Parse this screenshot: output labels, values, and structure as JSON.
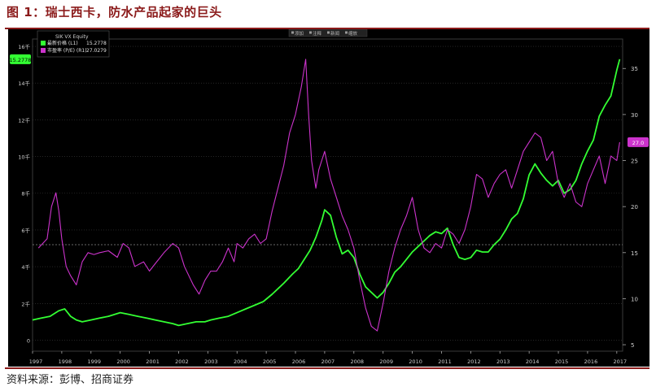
{
  "figure": {
    "title": "图 1：瑞士西卡，防水产品起家的巨头",
    "source": "资料来源：彭博、招商证券"
  },
  "toolbar": [
    "添加",
    "注释",
    "新闻",
    "缩放"
  ],
  "colors": {
    "price": "#33ff33",
    "pe": "#cc33cc",
    "background": "#000000",
    "frame": "#8b1a1a"
  },
  "chart_data": {
    "type": "line",
    "security": "SIK VX Equity",
    "x_tick_labels": [
      "1997",
      "1998",
      "1999",
      "2000",
      "2001",
      "2002",
      "2003",
      "2004",
      "2005",
      "2006",
      "2007",
      "2008",
      "2009",
      "2010",
      "2011",
      "2012",
      "2013",
      "2014",
      "2015",
      "2016",
      "2017"
    ],
    "xlim": [
      1997,
      2017.2
    ],
    "left_axis": {
      "ticks": [
        0,
        2,
        4,
        6,
        8,
        10,
        12,
        14,
        16
      ],
      "tick_labels": [
        "0",
        "2千",
        "4千",
        "6千",
        "8千",
        "10千",
        "12千",
        "14千",
        "16千"
      ],
      "ylim": [
        -0.6,
        16.4
      ]
    },
    "right_axis": {
      "ticks": [
        5,
        10,
        15,
        20,
        25,
        30,
        35
      ],
      "tick_labels": [
        "5",
        "10",
        "15",
        "20",
        "25",
        "30",
        "35"
      ],
      "ylim": [
        4.3,
        38.2
      ]
    },
    "dashed_reference": {
      "left_axis_value": 5.2
    },
    "legend": {
      "placement": "top-left",
      "items": [
        {
          "name": "最新价格 (L1)",
          "value": "15.2778"
        },
        {
          "name": "市盈率 (P/E) (R1)",
          "value": "27.0279"
        }
      ]
    },
    "series": [
      {
        "name": "最新价格 (L1)",
        "axis": "left",
        "last_value_label": "15.2778",
        "x": [
          1997.0,
          1997.3,
          1997.6,
          1997.9,
          1998.1,
          1998.3,
          1998.5,
          1998.7,
          1999.0,
          1999.3,
          1999.6,
          2000.0,
          2000.3,
          2000.6,
          2000.9,
          2001.2,
          2001.5,
          2001.8,
          2002.0,
          2002.3,
          2002.6,
          2002.9,
          2003.1,
          2003.4,
          2003.7,
          2004.0,
          2004.3,
          2004.6,
          2004.9,
          2005.2,
          2005.4,
          2005.6,
          2005.9,
          2006.1,
          2006.3,
          2006.5,
          2006.7,
          2006.9,
          2007.0,
          2007.2,
          2007.4,
          2007.6,
          2007.8,
          2008.0,
          2008.2,
          2008.4,
          2008.6,
          2008.8,
          2009.0,
          2009.2,
          2009.4,
          2009.6,
          2009.8,
          2010.0,
          2010.2,
          2010.4,
          2010.6,
          2010.8,
          2011.0,
          2011.2,
          2011.4,
          2011.6,
          2011.8,
          2012.0,
          2012.2,
          2012.4,
          2012.6,
          2012.8,
          2013.0,
          2013.2,
          2013.4,
          2013.6,
          2013.8,
          2014.0,
          2014.2,
          2014.4,
          2014.6,
          2014.8,
          2015.0,
          2015.2,
          2015.4,
          2015.6,
          2015.8,
          2016.0,
          2016.2,
          2016.4,
          2016.6,
          2016.8,
          2017.0,
          2017.1
        ],
        "values": [
          1.1,
          1.2,
          1.3,
          1.6,
          1.7,
          1.3,
          1.1,
          1.0,
          1.1,
          1.2,
          1.3,
          1.5,
          1.4,
          1.3,
          1.2,
          1.1,
          1.0,
          0.9,
          0.8,
          0.9,
          1.0,
          1.0,
          1.1,
          1.2,
          1.3,
          1.5,
          1.7,
          1.9,
          2.1,
          2.5,
          2.8,
          3.1,
          3.6,
          3.9,
          4.4,
          4.9,
          5.6,
          6.5,
          7.1,
          6.8,
          5.6,
          4.7,
          4.9,
          4.5,
          3.6,
          2.9,
          2.6,
          2.3,
          2.6,
          3.1,
          3.7,
          4.0,
          4.4,
          4.8,
          5.1,
          5.4,
          5.7,
          5.9,
          5.8,
          6.1,
          5.2,
          4.5,
          4.4,
          4.5,
          4.9,
          4.8,
          4.8,
          5.2,
          5.5,
          6.0,
          6.6,
          6.9,
          7.7,
          9.0,
          9.6,
          9.1,
          8.7,
          8.4,
          8.7,
          8.0,
          8.2,
          8.7,
          9.6,
          10.3,
          10.9,
          12.2,
          12.8,
          13.3,
          14.7,
          15.3
        ]
      },
      {
        "name": "市盈率 (P/E) (R1)",
        "axis": "right",
        "last_value_label": "27.0",
        "x": [
          1997.2,
          1997.5,
          1997.65,
          1997.8,
          1997.9,
          1998.0,
          1998.15,
          1998.3,
          1998.5,
          1998.7,
          1998.9,
          1999.1,
          1999.3,
          1999.6,
          1999.9,
          2000.1,
          2000.3,
          2000.5,
          2000.8,
          2001.0,
          2001.2,
          2001.5,
          2001.8,
          2002.0,
          2002.2,
          2002.5,
          2002.7,
          2002.9,
          2003.1,
          2003.3,
          2003.5,
          2003.7,
          2003.9,
          2004.0,
          2004.2,
          2004.4,
          2004.6,
          2004.8,
          2005.0,
          2005.2,
          2005.4,
          2005.6,
          2005.8,
          2006.0,
          2006.2,
          2006.35,
          2006.45,
          2006.55,
          2006.7,
          2006.8,
          2006.9,
          2007.0,
          2007.2,
          2007.4,
          2007.6,
          2007.8,
          2008.0,
          2008.2,
          2008.4,
          2008.6,
          2008.8,
          2009.0,
          2009.2,
          2009.4,
          2009.6,
          2009.8,
          2010.0,
          2010.2,
          2010.4,
          2010.6,
          2010.8,
          2011.0,
          2011.2,
          2011.4,
          2011.6,
          2011.8,
          2012.0,
          2012.2,
          2012.4,
          2012.6,
          2012.8,
          2013.0,
          2013.2,
          2013.4,
          2013.6,
          2013.8,
          2014.0,
          2014.2,
          2014.4,
          2014.6,
          2014.8,
          2015.0,
          2015.2,
          2015.4,
          2015.6,
          2015.8,
          2016.0,
          2016.2,
          2016.4,
          2016.6,
          2016.8,
          2017.0,
          2017.1
        ],
        "values": [
          15.5,
          16.5,
          20.0,
          21.5,
          19.5,
          16.5,
          13.5,
          12.5,
          11.5,
          14.0,
          15.0,
          14.8,
          15.0,
          15.2,
          14.5,
          16.0,
          15.5,
          13.5,
          14.0,
          13.0,
          13.8,
          15.0,
          16.0,
          15.5,
          13.5,
          11.5,
          10.5,
          12.0,
          13.0,
          13.0,
          14.0,
          15.5,
          14.0,
          16.0,
          15.5,
          16.5,
          17.0,
          16.0,
          16.5,
          19.5,
          22.0,
          24.5,
          28.0,
          30.0,
          33.0,
          36.0,
          30.0,
          25.0,
          22.0,
          24.0,
          25.0,
          26.0,
          23.0,
          21.0,
          19.0,
          17.5,
          15.5,
          12.0,
          9.0,
          7.0,
          6.5,
          9.5,
          13.0,
          15.5,
          17.5,
          19.0,
          21.0,
          17.5,
          15.5,
          15.0,
          16.0,
          15.5,
          17.5,
          17.0,
          16.0,
          17.5,
          20.0,
          23.5,
          23.0,
          21.0,
          22.5,
          23.5,
          24.0,
          22.0,
          24.0,
          26.0,
          27.0,
          28.0,
          27.5,
          25.0,
          26.0,
          22.5,
          21.0,
          22.5,
          20.5,
          20.0,
          22.5,
          24.0,
          25.5,
          22.5,
          25.5,
          25.0,
          27.0
        ]
      }
    ]
  }
}
